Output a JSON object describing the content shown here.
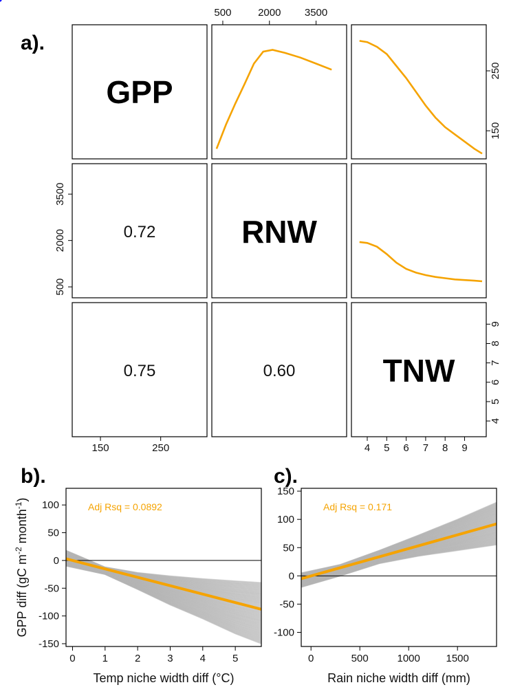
{
  "colors": {
    "points": "#1a1aff",
    "smooth": "#f5a300",
    "band": "#b4b4b4",
    "frame": "#000000"
  },
  "panel_letters": {
    "a": "a).",
    "b": "b).",
    "c": "c)."
  },
  "chart_data": [
    {
      "type": "scatter",
      "panel": "a",
      "variables": [
        "GPP",
        "RNW",
        "TNW"
      ],
      "diagonal_labels": [
        "GPP",
        "RNW",
        "TNW"
      ],
      "correlations": {
        "gpp_rnw": "0.72",
        "gpp_tnw": "0.75",
        "rnw_tnw": "0.60"
      },
      "ticks": {
        "top": [
          "500",
          "2000",
          "3500"
        ],
        "right_top": [
          "150",
          "250"
        ],
        "left_middle": [
          "500",
          "2000",
          "3500"
        ],
        "right_bottom": [
          "4",
          "5",
          "6",
          "7",
          "8",
          "9"
        ],
        "bottom_left": [
          "150",
          "250"
        ],
        "bottom_right": [
          "4",
          "5",
          "6",
          "7",
          "8",
          "9"
        ]
      },
      "ranges": {
        "GPP": [
          110,
          320
        ],
        "RNW": [
          280,
          4350
        ],
        "TNW": [
          3.4,
          9.9
        ]
      },
      "smooth_gpp_vs_rnw": {
        "x": [
          300,
          600,
          900,
          1200,
          1500,
          1800,
          2100,
          2500,
          3000,
          3500,
          4000
        ],
        "y": [
          120,
          160,
          195,
          228,
          262,
          282,
          285,
          280,
          272,
          262,
          252
        ]
      },
      "smooth_gpp_vs_tnw": {
        "x": [
          3.6,
          4.0,
          4.5,
          5.0,
          5.5,
          6.0,
          6.5,
          7.0,
          7.5,
          8.0,
          8.5,
          9.0,
          9.5,
          9.9
        ],
        "y": [
          300,
          298,
          290,
          278,
          258,
          238,
          215,
          192,
          172,
          156,
          144,
          132,
          120,
          112
        ]
      },
      "smooth_rnw_vs_tnw": {
        "x": [
          3.6,
          4.0,
          4.5,
          5.0,
          5.5,
          6.0,
          6.5,
          7.0,
          7.5,
          8.0,
          8.5,
          9.0,
          9.5,
          9.9
        ],
        "y": [
          1950,
          1920,
          1800,
          1560,
          1280,
          1080,
          960,
          880,
          820,
          780,
          740,
          720,
          700,
          680
        ]
      }
    },
    {
      "type": "line",
      "panel": "b",
      "xlabel": "Temp niche width diff (°C)",
      "ylabel_main": "GPP diff (gC m",
      "ylabel_sup1": "-2",
      "ylabel_mid": " month",
      "ylabel_sup2": "-1",
      "ylabel_end": ")",
      "annotation": "Adj Rsq =  0.0892",
      "xlim": [
        -0.2,
        5.8
      ],
      "ylim": [
        -155,
        130
      ],
      "xticks": [
        0,
        1,
        2,
        3,
        4,
        5
      ],
      "yticks": [
        100,
        50,
        0,
        -50,
        -100,
        -150
      ],
      "xtick_labels": [
        "0",
        "1",
        "2",
        "3",
        "4",
        "5"
      ],
      "ytick_labels": [
        "100",
        "50",
        "0",
        "-50",
        "-100",
        "-150"
      ],
      "fit": {
        "x": [
          -0.2,
          5.8
        ],
        "y": [
          3,
          -88
        ]
      },
      "band_upper": {
        "x": [
          -0.2,
          1.0,
          2.0,
          3.0,
          4.0,
          5.0,
          5.8
        ],
        "y": [
          18,
          -12,
          -22,
          -28,
          -33,
          -37,
          -40
        ]
      },
      "band_lower": {
        "x": [
          -0.2,
          1.0,
          2.0,
          3.0,
          4.0,
          5.0,
          5.8
        ],
        "y": [
          -10,
          -25,
          -52,
          -80,
          -105,
          -132,
          -150
        ]
      },
      "reference_line_y": 0
    },
    {
      "type": "line",
      "panel": "c",
      "xlabel": "Rain niche width diff (mm)",
      "annotation": "Adj Rsq =  0.171",
      "xlim": [
        -100,
        1900
      ],
      "ylim": [
        -125,
        155
      ],
      "xticks": [
        0,
        500,
        1000,
        1500
      ],
      "yticks": [
        150,
        100,
        50,
        0,
        -50,
        -100
      ],
      "xtick_labels": [
        "0",
        "500",
        "1000",
        "1500"
      ],
      "ytick_labels": [
        "150",
        "100",
        "50",
        "0",
        "-50",
        "-100"
      ],
      "fit": {
        "x": [
          -100,
          1900
        ],
        "y": [
          -5,
          92
        ]
      },
      "band_upper": {
        "x": [
          -100,
          300,
          700,
          1100,
          1500,
          1900
        ],
        "y": [
          5,
          20,
          45,
          72,
          100,
          130
        ]
      },
      "band_lower": {
        "x": [
          -100,
          300,
          700,
          1100,
          1500,
          1900
        ],
        "y": [
          -20,
          0,
          22,
          35,
          45,
          55
        ]
      },
      "reference_line_y": 0
    }
  ]
}
